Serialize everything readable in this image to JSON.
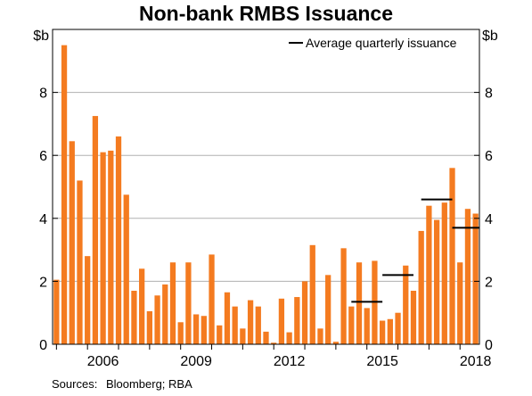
{
  "title": "Non-bank RMBS Issuance",
  "source": {
    "label": "Sources:",
    "text": "Bloomberg; RBA"
  },
  "colors": {
    "bar": "#f47b20",
    "average": "#000000",
    "grid": "#b0b0b0"
  },
  "chart_data": {
    "type": "bar",
    "title": "Non-bank RMBS Issuance",
    "ylabel_left": "$b",
    "ylabel_right": "$b",
    "ylim": [
      0,
      10
    ],
    "yticks": [
      0,
      2,
      4,
      6,
      8
    ],
    "grid": true,
    "legend": {
      "position": "top-right",
      "entries": [
        "Average quarterly issuance"
      ]
    },
    "x_tick_labels": [
      {
        "label": "2006",
        "year": 2006
      },
      {
        "label": "2009",
        "year": 2009
      },
      {
        "label": "2012",
        "year": 2012
      },
      {
        "label": "2015",
        "year": 2015
      },
      {
        "label": "2018",
        "year": 2018
      }
    ],
    "x_range_years": [
      2004.875,
      2018.625
    ],
    "series": [
      {
        "type": "bar",
        "values": [
          2.05,
          9.5,
          6.45,
          5.2,
          2.8,
          7.25,
          6.1,
          6.15,
          6.6,
          4.75,
          1.7,
          2.4,
          1.05,
          1.55,
          1.9,
          2.6,
          0.7,
          2.6,
          0.95,
          0.9,
          2.85,
          0.6,
          1.65,
          1.2,
          0.5,
          1.4,
          1.2,
          0.4,
          0.05,
          1.45,
          0.38,
          1.5,
          2.0,
          3.15,
          0.5,
          2.2,
          0.08,
          3.05,
          1.2,
          2.6,
          1.15,
          2.65,
          0.75,
          0.8,
          1.0,
          2.5,
          1.7,
          3.6,
          4.4,
          3.95,
          4.5,
          5.6,
          2.6,
          4.3,
          4.15
        ]
      },
      {
        "type": "step",
        "segments": [
          {
            "value": 1.35,
            "x_start": 2014.5,
            "x_end": 2015.5
          },
          {
            "value": 2.2,
            "x_start": 2015.5,
            "x_end": 2016.5
          },
          {
            "value": 4.6,
            "x_start": 2016.75,
            "x_end": 2017.75
          },
          {
            "value": 3.7,
            "x_start": 2017.75,
            "x_end": 2018.75
          }
        ]
      }
    ]
  }
}
